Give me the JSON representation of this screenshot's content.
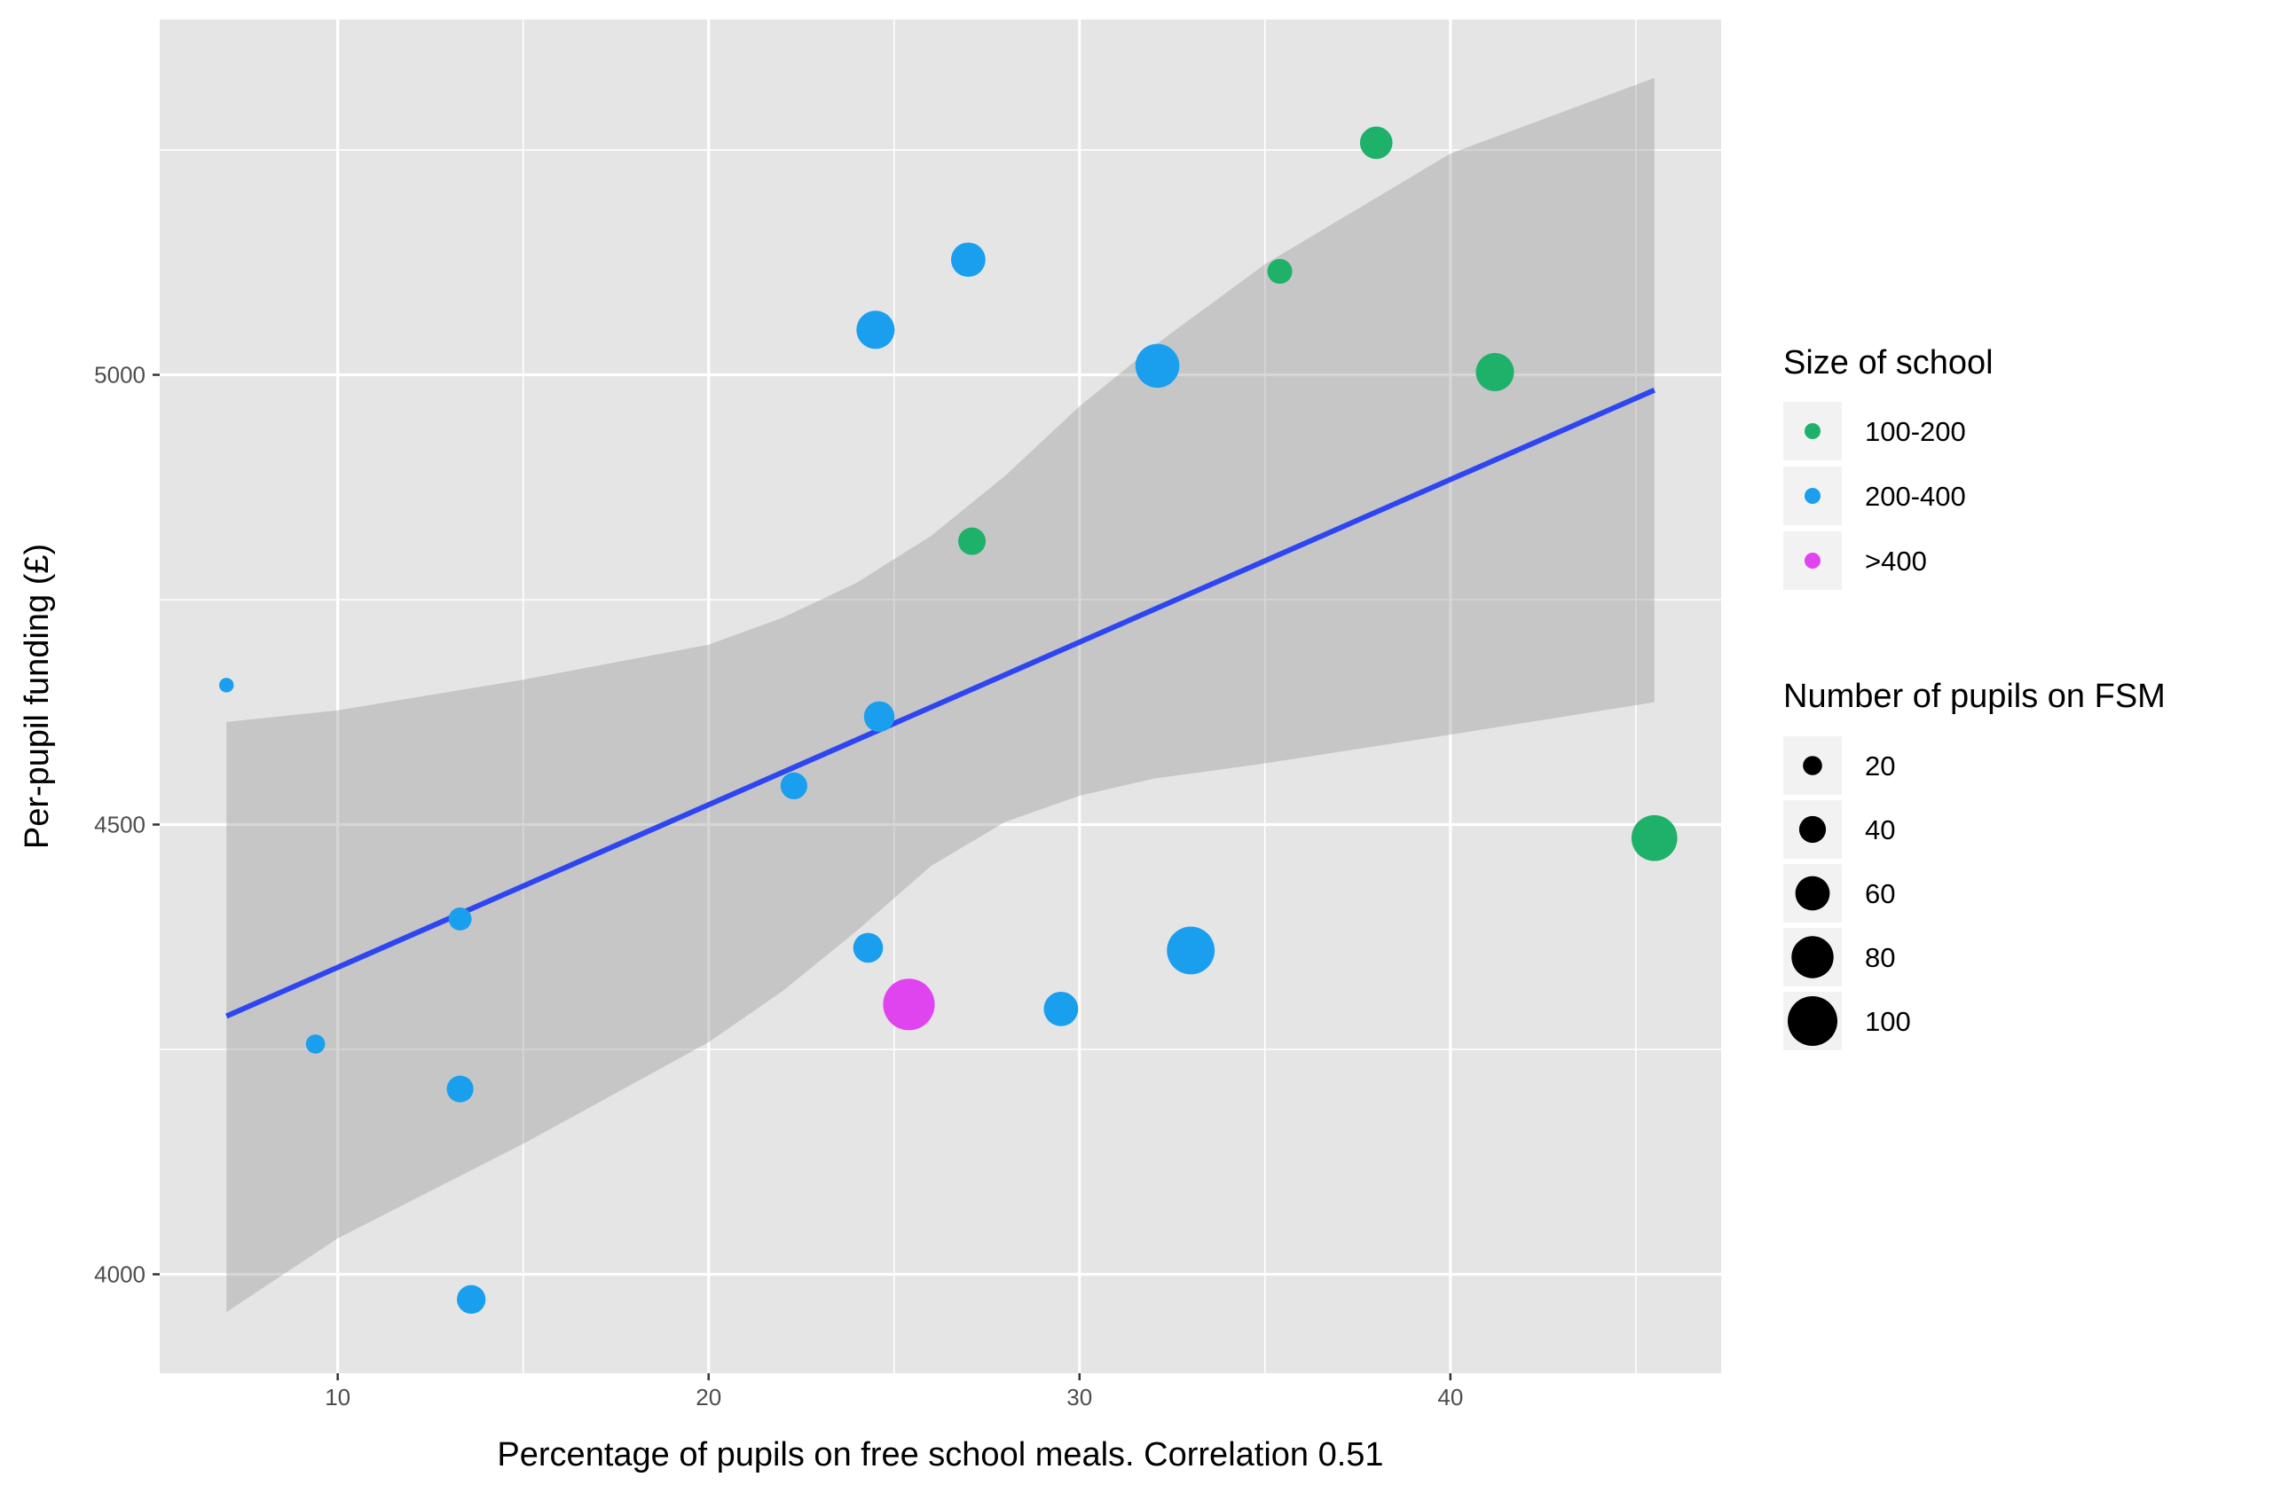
{
  "chart_data": {
    "type": "scatter",
    "xlabel": "Percentage of pupils on free school meals. Correlation 0.51",
    "ylabel": "Per-pupil funding (£)",
    "xlim": [
      5.2,
      47.3
    ],
    "ylim": [
      3890,
      5395
    ],
    "x_ticks": [
      10,
      20,
      30,
      40
    ],
    "y_ticks": [
      4000,
      4500,
      5000
    ],
    "x_tick_labels": [
      "10",
      "20",
      "30",
      "40"
    ],
    "y_tick_labels": [
      "4000",
      "4500",
      "5000"
    ],
    "grid": true,
    "legend_position": "right",
    "colors": {
      "100-200": "#1eb16a",
      "200-400": "#1a9fef",
      ">400": "#e044ee",
      "fit_line": "#2e46f2",
      "band": "#b3b3b3",
      "panel": "#e5e5e5",
      "grid": "#ffffff"
    },
    "points": [
      {
        "x": 7.0,
        "y": 4655,
        "group": "200-400",
        "fsm": 8
      },
      {
        "x": 9.4,
        "y": 4256,
        "group": "200-400",
        "fsm": 20
      },
      {
        "x": 13.3,
        "y": 4395,
        "group": "200-400",
        "fsm": 30
      },
      {
        "x": 13.3,
        "y": 4206,
        "group": "200-400",
        "fsm": 40
      },
      {
        "x": 13.6,
        "y": 3972,
        "group": "200-400",
        "fsm": 45
      },
      {
        "x": 22.3,
        "y": 4543,
        "group": "200-400",
        "fsm": 40
      },
      {
        "x": 24.3,
        "y": 4363,
        "group": "200-400",
        "fsm": 48
      },
      {
        "x": 24.5,
        "y": 5050,
        "group": "200-400",
        "fsm": 70
      },
      {
        "x": 24.6,
        "y": 4620,
        "group": "200-400",
        "fsm": 50
      },
      {
        "x": 25.4,
        "y": 4300,
        "group": ">400",
        "fsm": 105
      },
      {
        "x": 27.0,
        "y": 5128,
        "group": "200-400",
        "fsm": 60
      },
      {
        "x": 27.1,
        "y": 4815,
        "group": "100-200",
        "fsm": 42
      },
      {
        "x": 29.5,
        "y": 4295,
        "group": "200-400",
        "fsm": 60
      },
      {
        "x": 32.1,
        "y": 5010,
        "group": "200-400",
        "fsm": 85
      },
      {
        "x": 33.0,
        "y": 4360,
        "group": "200-400",
        "fsm": 95
      },
      {
        "x": 35.4,
        "y": 5115,
        "group": "100-200",
        "fsm": 35
      },
      {
        "x": 38.0,
        "y": 5258,
        "group": "100-200",
        "fsm": 55
      },
      {
        "x": 41.2,
        "y": 5003,
        "group": "100-200",
        "fsm": 70
      },
      {
        "x": 45.5,
        "y": 4485,
        "group": "100-200",
        "fsm": 90
      }
    ],
    "fit_line": {
      "x": [
        7.0,
        45.5
      ],
      "y": [
        4287,
        4983
      ]
    },
    "confidence_band": {
      "x": [
        7.0,
        10,
        15,
        20,
        22,
        24,
        26,
        28,
        30,
        32,
        35,
        40,
        45.5
      ],
      "upper": [
        4614,
        4627,
        4661,
        4700,
        4730,
        4769,
        4821,
        4888,
        4965,
        5032,
        5123,
        5246,
        5330
      ],
      "lower": [
        3958,
        4040,
        4145,
        4258,
        4315,
        4382,
        4454,
        4503,
        4532,
        4551,
        4568,
        4600,
        4636
      ]
    },
    "legend": {
      "color": {
        "title": "Size of school",
        "entries": [
          {
            "label": "100-200",
            "color": "#1eb16a"
          },
          {
            "label": "200-400",
            "color": "#1a9fef"
          },
          {
            "label": ">400",
            "color": "#e044ee"
          }
        ]
      },
      "size": {
        "title": "Number of pupils on FSM",
        "entries": [
          {
            "label": "20",
            "value": 20
          },
          {
            "label": "40",
            "value": 40
          },
          {
            "label": "60",
            "value": 60
          },
          {
            "label": "80",
            "value": 80
          },
          {
            "label": "100",
            "value": 100
          }
        ]
      }
    }
  }
}
